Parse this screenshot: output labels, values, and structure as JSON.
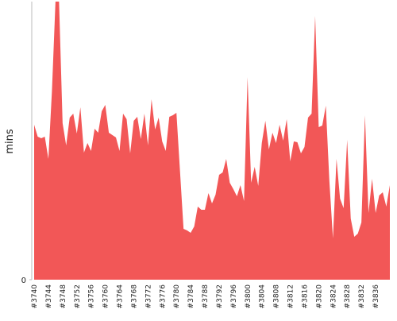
{
  "chart_data": {
    "type": "area",
    "y_label": "mins",
    "color": "#f25757",
    "categories": [
      "#3740",
      null,
      null,
      null,
      "#3744",
      null,
      null,
      null,
      "#3748",
      null,
      null,
      null,
      "#3752",
      null,
      null,
      null,
      "#3756",
      null,
      null,
      null,
      "#3760",
      null,
      null,
      null,
      "#3764",
      null,
      null,
      null,
      "#3768",
      null,
      null,
      null,
      "#3772",
      null,
      null,
      null,
      "#3776",
      null,
      null,
      null,
      "#3780",
      null,
      null,
      null,
      "#3784",
      null,
      null,
      null,
      "#3788",
      null,
      null,
      null,
      "#3792",
      null,
      null,
      null,
      "#3796",
      null,
      null,
      null,
      "#3800",
      null,
      null,
      null,
      "#3804",
      null,
      null,
      null,
      "#3808",
      null,
      null,
      null,
      "#3812",
      null,
      null,
      null,
      "#3816",
      null,
      null,
      null,
      "#3820",
      null,
      null,
      null,
      "#3824",
      null,
      null,
      null,
      "#3828",
      null,
      null,
      null,
      "#3832",
      null,
      null,
      null,
      "#3836",
      null,
      null,
      null,
      null
    ],
    "values": [
      195,
      180,
      178,
      180,
      152,
      237,
      350,
      350,
      197,
      169,
      204,
      209,
      184,
      217,
      160,
      172,
      162,
      190,
      185,
      212,
      220,
      185,
      182,
      179,
      162,
      209,
      202,
      159,
      200,
      205,
      177,
      209,
      169,
      227,
      189,
      204,
      174,
      162,
      205,
      207,
      210,
      137,
      64,
      62,
      59,
      67,
      92,
      88,
      88,
      109,
      96,
      107,
      132,
      135,
      152,
      122,
      114,
      105,
      119,
      99,
      255,
      122,
      142,
      118,
      172,
      200,
      164,
      185,
      172,
      195,
      175,
      202,
      149,
      174,
      173,
      159,
      167,
      204,
      209,
      332,
      192,
      194,
      219,
      124,
      52,
      152,
      102,
      90,
      176,
      77,
      54,
      58,
      72,
      207,
      84,
      127,
      84,
      106,
      110,
      92,
      119
    ],
    "ylim": [
      0,
      350
    ],
    "yticks": [
      0
    ]
  }
}
